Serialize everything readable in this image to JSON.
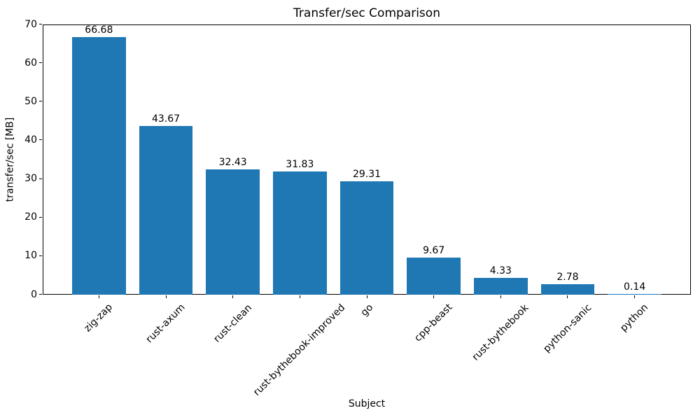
{
  "chart_data": {
    "type": "bar",
    "title": "Transfer/sec Comparison",
    "xlabel": "Subject",
    "ylabel": "transfer/sec [MB]",
    "categories": [
      "zig-zap",
      "rust-axum",
      "rust-clean",
      "rust-bythebook-improved",
      "go",
      "cpp-beast",
      "rust-bythebook",
      "python-sanic",
      "python"
    ],
    "values": [
      66.68,
      43.67,
      32.43,
      31.83,
      29.31,
      9.67,
      4.33,
      2.78,
      0.14
    ],
    "value_labels": [
      "66.68",
      "43.67",
      "32.43",
      "31.83",
      "29.31",
      "9.67",
      "4.33",
      "2.78",
      "0.14"
    ],
    "ylim": [
      0,
      70
    ],
    "yticks": [
      0,
      10,
      20,
      30,
      40,
      50,
      60,
      70
    ],
    "x_tick_rotation_deg": 45,
    "bar_color": "#1f77b4",
    "axis_color": "#000000",
    "text_color": "#000000",
    "background_color": "#ffffff",
    "grid": false,
    "legend_position": "none"
  }
}
